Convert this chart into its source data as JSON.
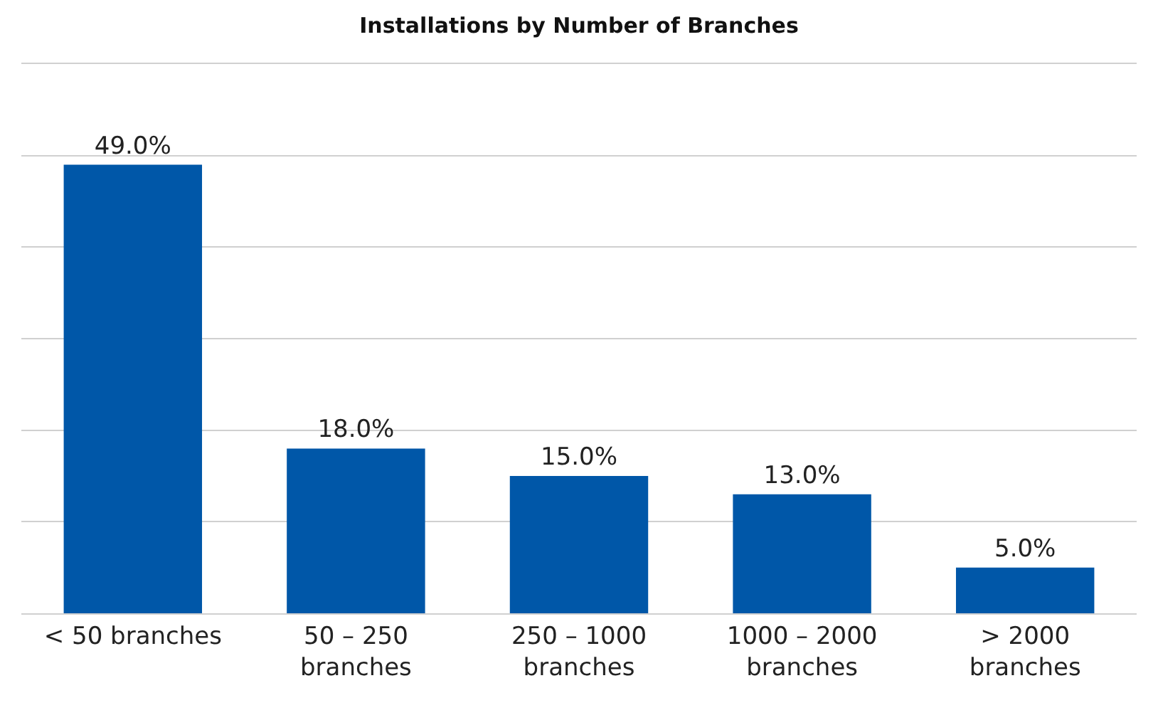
{
  "chart_data": {
    "type": "bar",
    "title": "Installations by Number of Branches",
    "categories": [
      "< 50 branches",
      "50 – 250 branches",
      "250 – 1000 branches",
      "1000 – 2000 branches",
      "> 2000 branches"
    ],
    "values": [
      49.0,
      18.0,
      15.0,
      13.0,
      5.0
    ],
    "value_labels": [
      "49.0%",
      "18.0%",
      "15.0%",
      "13.0%",
      "5.0%"
    ],
    "color": "#0057a8",
    "ylim": [
      0,
      60
    ],
    "yticks": [
      {
        "value": 0,
        "label": null
      },
      {
        "value": 10,
        "label": null
      },
      {
        "value": 20,
        "label": null
      },
      {
        "value": 30,
        "label": null
      },
      {
        "value": 40,
        "label": null
      },
      {
        "value": 50,
        "label": null
      },
      {
        "value": 60,
        "label": null
      }
    ],
    "tick_labels": "x",
    "grid": "y",
    "legend": false
  }
}
